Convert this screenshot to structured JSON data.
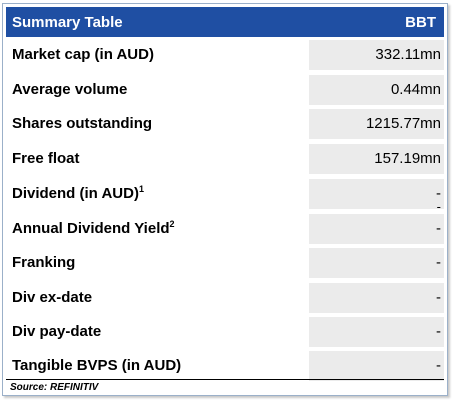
{
  "header": {
    "title": "Summary Table",
    "ticker": "BBT"
  },
  "rows": [
    {
      "label": "Market cap (in AUD)",
      "sup": "",
      "value": "332.11mn"
    },
    {
      "label": "Average volume",
      "sup": "",
      "value": "0.44mn"
    },
    {
      "label": "Shares outstanding",
      "sup": "",
      "value": "1215.77mn"
    },
    {
      "label": "Free float",
      "sup": "",
      "value": "157.19mn"
    },
    {
      "label": "Dividend (in AUD)",
      "sup": "1",
      "value": "-",
      "extra": "-"
    },
    {
      "label": "Annual Dividend Yield",
      "sup": "2",
      "value": "-"
    },
    {
      "label": "Franking",
      "sup": "",
      "value": "-"
    },
    {
      "label": "Div ex-date",
      "sup": "",
      "value": "-"
    },
    {
      "label": "Div pay-date",
      "sup": "",
      "value": "-"
    },
    {
      "label": "Tangible BVPS (in AUD)",
      "sup": "",
      "value": "-"
    }
  ],
  "source": "Source: REFINITIV",
  "colors": {
    "header_bg": "#1f4fa3",
    "value_bg": "#ebebeb"
  }
}
